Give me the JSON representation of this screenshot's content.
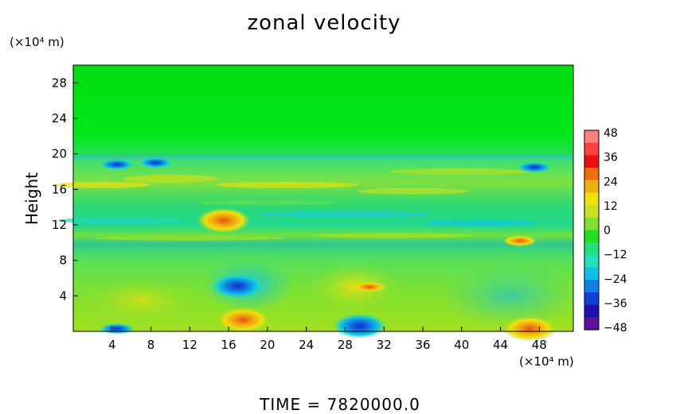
{
  "title": "zonal velocity",
  "y_unit": "(×10⁴ m)",
  "x_unit": "(×10⁴ m)",
  "ylabel": "Height",
  "time_label": "TIME  =  7820000.0",
  "chart_data": {
    "type": "heatmap",
    "title": "zonal velocity",
    "xlabel": "",
    "ylabel": "Height",
    "xlim": [
      0,
      51.5
    ],
    "ylim": [
      0,
      30
    ],
    "x_ticks": [
      4,
      8,
      12,
      16,
      20,
      24,
      28,
      32,
      36,
      40,
      44,
      48
    ],
    "y_ticks": [
      4,
      8,
      12,
      16,
      20,
      24,
      28
    ],
    "colorbar": {
      "ticks": [
        48,
        36,
        24,
        12,
        0,
        -12,
        -24,
        -36,
        -48
      ],
      "range": [
        -48,
        48
      ]
    },
    "features": [
      {
        "x": 4.5,
        "y": 0.3,
        "value": -24
      },
      {
        "x": 16.9,
        "y": 5.1,
        "value": -34
      },
      {
        "x": 17.5,
        "y": 1.3,
        "value": 34
      },
      {
        "x": 29.5,
        "y": 0.6,
        "value": -32
      },
      {
        "x": 30.5,
        "y": 5.0,
        "value": 20
      },
      {
        "x": 47,
        "y": 0.3,
        "value": 32
      },
      {
        "x": 15.5,
        "y": 12.5,
        "value": 38
      },
      {
        "x": 4.5,
        "y": 18.8,
        "value": -24
      },
      {
        "x": 8.5,
        "y": 19.0,
        "value": -20
      },
      {
        "x": 47.5,
        "y": 18.5,
        "value": -20
      },
      {
        "x": 46.0,
        "y": 10.2,
        "value": 22
      }
    ]
  }
}
